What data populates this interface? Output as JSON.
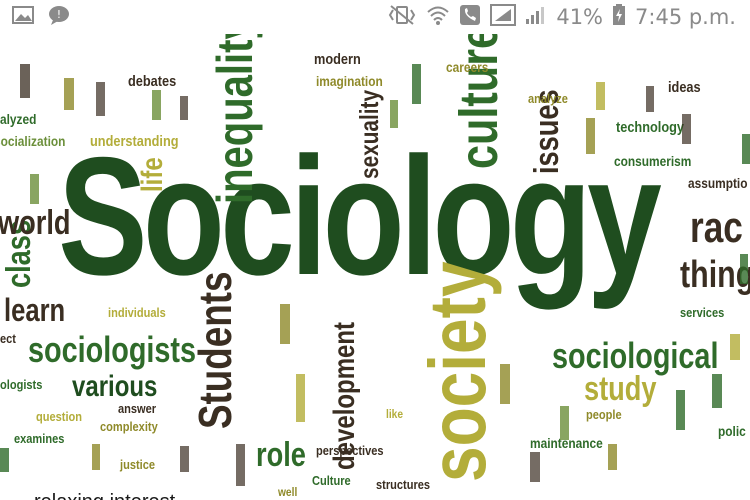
{
  "status_bar": {
    "battery_percent": "41%",
    "time": "7:45 p.m."
  },
  "wordcloud": {
    "main": "Sociology",
    "words": {
      "society": "society",
      "culture": "culture",
      "inequality": "inequality",
      "students": "Students",
      "sociologists": "sociologists",
      "sociological": "sociological",
      "study": "study",
      "development": "development",
      "various": "various",
      "role": "role",
      "issues": "issues",
      "sexuality": "sexuality",
      "class": "class",
      "world": "world",
      "learn": "learn",
      "life": "life",
      "things": "things",
      "race": "rac",
      "modern": "modern",
      "imagination": "imagination",
      "careers": "careers",
      "debates": "debates",
      "understanding": "understanding",
      "analyze": "analyze",
      "ideas": "ideas",
      "technology": "technology",
      "consumerism": "consumerism",
      "assumptions": "assumptio",
      "individuals": "individuals",
      "services": "services",
      "question": "question",
      "answer": "answer",
      "complexity": "complexity",
      "examines": "examines",
      "justice": "justice",
      "perspectives": "perspectives",
      "maintenance": "maintenance",
      "people": "people",
      "police": "polic",
      "culture_small": "Culture",
      "structures": "structures",
      "socialization": "socialization",
      "analyzed": "alyzed",
      "sociologists_small": "ologists",
      "act": "ect",
      "like": "like",
      "well": "well"
    },
    "colors": {
      "dark_green": "#1f4d1f",
      "mid_green": "#2f6b2a",
      "olive": "#8f8a2a",
      "yellow_olive": "#b3ad3a",
      "brown": "#3a2e22",
      "light_green": "#6b8f3a"
    },
    "bottom_cut_text": "relaxing interest"
  }
}
